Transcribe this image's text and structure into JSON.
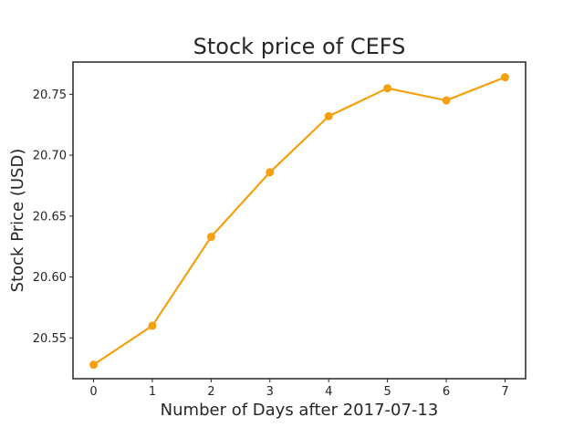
{
  "chart_data": {
    "type": "line",
    "title": "Stock price of CEFS",
    "xlabel": "Number of Days after 2017-07-13",
    "ylabel": "Stock Price (USD)",
    "x": [
      0,
      1,
      2,
      3,
      4,
      5,
      6,
      7
    ],
    "xticks": [
      0,
      1,
      2,
      3,
      4,
      5,
      6,
      7
    ],
    "yticks": [
      20.55,
      20.6,
      20.65,
      20.7,
      20.75
    ],
    "ytick_labels": [
      "20.55",
      "20.60",
      "20.65",
      "20.70",
      "20.75"
    ],
    "xlim": [
      -0.35,
      7.35
    ],
    "ylim": [
      20.5165,
      20.7765
    ],
    "series": [
      {
        "values": [
          20.528,
          20.56,
          20.633,
          20.686,
          20.732,
          20.755,
          20.745,
          20.764
        ],
        "color": "#f5a00f"
      }
    ],
    "grid": false,
    "legend": false
  }
}
